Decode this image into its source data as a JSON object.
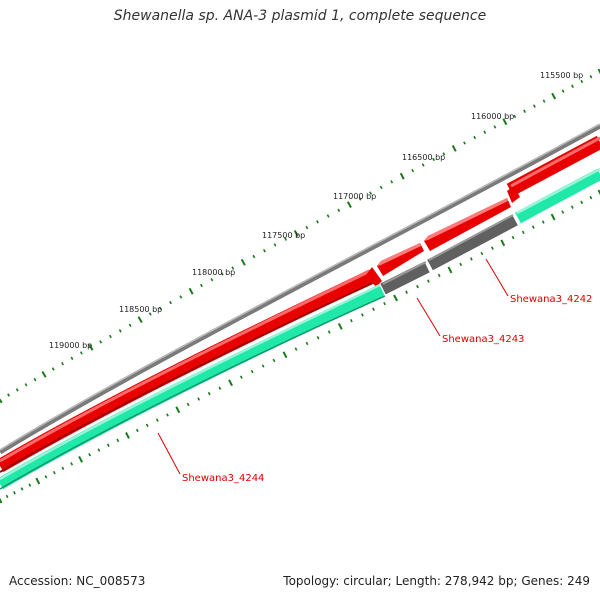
{
  "header": {
    "title": "Shewanella sp. ANA-3 plasmid 1, complete sequence"
  },
  "ticks": [
    {
      "label": "115500 bp"
    },
    {
      "label": "116000 bp"
    },
    {
      "label": "116500 bp"
    },
    {
      "label": "117000 bp"
    },
    {
      "label": "117500 bp"
    },
    {
      "label": "118000 bp"
    },
    {
      "label": "118500 bp"
    },
    {
      "label": "119000 bp"
    }
  ],
  "genes": [
    {
      "name": "Shewana3_4242"
    },
    {
      "name": "Shewana3_4243"
    },
    {
      "name": "Shewana3_4244"
    }
  ],
  "colors": {
    "backbone": "#7a7a7a",
    "cds": "#e80000",
    "orf": "#20e8a8",
    "gray_feature": "#606060",
    "tick": "#1a7a1a",
    "label": "#e00000"
  },
  "footer": {
    "accession": "Accession: NC_008573",
    "summary": "Topology: circular; Length: 278,942 bp; Genes: 249"
  }
}
